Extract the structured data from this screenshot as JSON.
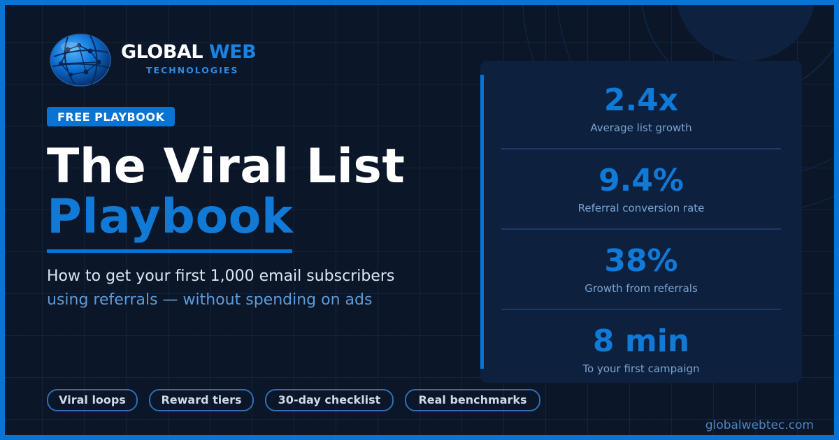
{
  "brand": {
    "name_primary": "GLOBAL",
    "name_accent": "WEB",
    "tagline": "TECHNOLOGIES",
    "logo_icon": "globe-icon"
  },
  "badge": "FREE PLAYBOOK",
  "title": {
    "line1": "The Viral List",
    "line2": "Playbook"
  },
  "subtitle": {
    "line1": "How to get your first 1,000 email subscribers",
    "line2": "using referrals — without spending on ads"
  },
  "stats": [
    {
      "value": "2.4x",
      "label": "Average list growth"
    },
    {
      "value": "9.4%",
      "label": "Referral conversion rate"
    },
    {
      "value": "38%",
      "label": "Growth from referrals"
    },
    {
      "value": "8 min",
      "label": "To your first campaign"
    }
  ],
  "tags": [
    "Viral loops",
    "Reward tiers",
    "30-day checklist",
    "Real benchmarks"
  ],
  "website": "globalwebtec.com",
  "colors": {
    "background": "#0b1629",
    "accent": "#0a74d4",
    "panel": "#0d213f",
    "text_primary": "#ffffff",
    "text_muted": "#5d9bd8"
  }
}
